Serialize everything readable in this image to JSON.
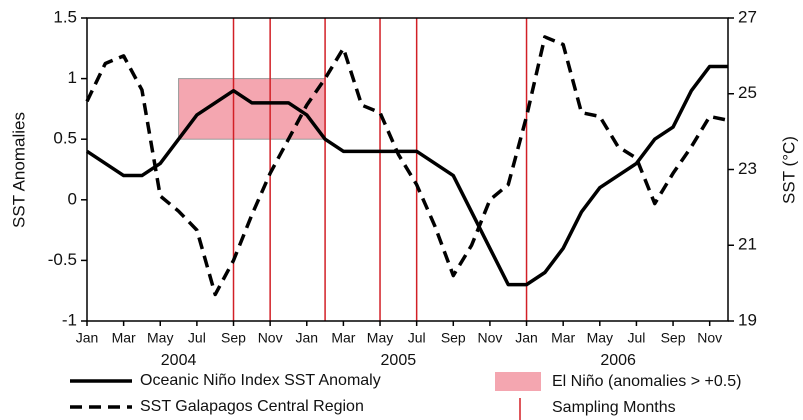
{
  "chart_data": {
    "type": "line",
    "y_label": "SST Anomalies",
    "y2_label": "SST (°C)",
    "categories": [
      "Jan",
      null,
      "Mar",
      null,
      "May",
      null,
      "Jul",
      null,
      "Sep",
      null,
      "Nov",
      null,
      "Jan",
      null,
      "Mar",
      null,
      "May",
      null,
      "Jul",
      null,
      "Sep",
      null,
      "Nov",
      null,
      "Jan",
      null,
      "Mar",
      null,
      "May",
      null,
      "Jul",
      null,
      "Sep",
      null,
      "Nov",
      null
    ],
    "year_labels": [
      {
        "label": "2004",
        "index": 5
      },
      {
        "label": "2005",
        "index": 17
      },
      {
        "label": "2006",
        "index": 29
      }
    ],
    "series": [
      {
        "name": "Oceanic Niño Index SST Anomaly",
        "color": "#000000",
        "dash": false,
        "axis": "y",
        "values": [
          0.4,
          0.3,
          0.2,
          0.2,
          0.3,
          0.5,
          0.7,
          0.8,
          0.9,
          0.8,
          0.8,
          0.8,
          0.7,
          0.5,
          0.4,
          0.4,
          0.4,
          0.4,
          0.4,
          0.3,
          0.2,
          -0.1,
          -0.4,
          -0.7,
          -0.7,
          -0.6,
          -0.4,
          -0.1,
          0.1,
          0.2,
          0.3,
          0.5,
          0.6,
          0.9,
          1.1,
          1.1
        ]
      },
      {
        "name": "SST Galapagos Central Region",
        "color": "#000000",
        "dash": true,
        "axis": "y2",
        "values": [
          24.8,
          25.8,
          26.0,
          25.1,
          22.3,
          21.9,
          21.4,
          19.7,
          20.6,
          21.8,
          22.9,
          23.8,
          24.7,
          25.4,
          26.2,
          24.7,
          24.5,
          23.4,
          22.6,
          21.5,
          20.2,
          21.0,
          22.2,
          22.6,
          24.4,
          26.5,
          26.3,
          24.5,
          24.4,
          23.6,
          23.3,
          22.1,
          22.9,
          23.6,
          24.4,
          24.3
        ]
      }
    ],
    "shaded_region": {
      "name": "El Niño (anomalies > +0.5)",
      "color": "#f4a6b0",
      "x": [
        5,
        13
      ],
      "y": [
        0.5,
        1.0
      ]
    },
    "sampling_months": {
      "name": "Sampling Months",
      "color": "#d21f26",
      "indices": [
        8,
        10,
        13,
        16,
        18,
        24
      ]
    },
    "xlim": [
      0,
      35
    ],
    "ylim": [
      -1,
      1.5
    ],
    "yticks": [
      -1,
      -0.5,
      0,
      0.5,
      1,
      1.5
    ],
    "y2lim": [
      19,
      27
    ],
    "y2ticks": [
      19,
      21,
      23,
      25,
      27
    ]
  }
}
